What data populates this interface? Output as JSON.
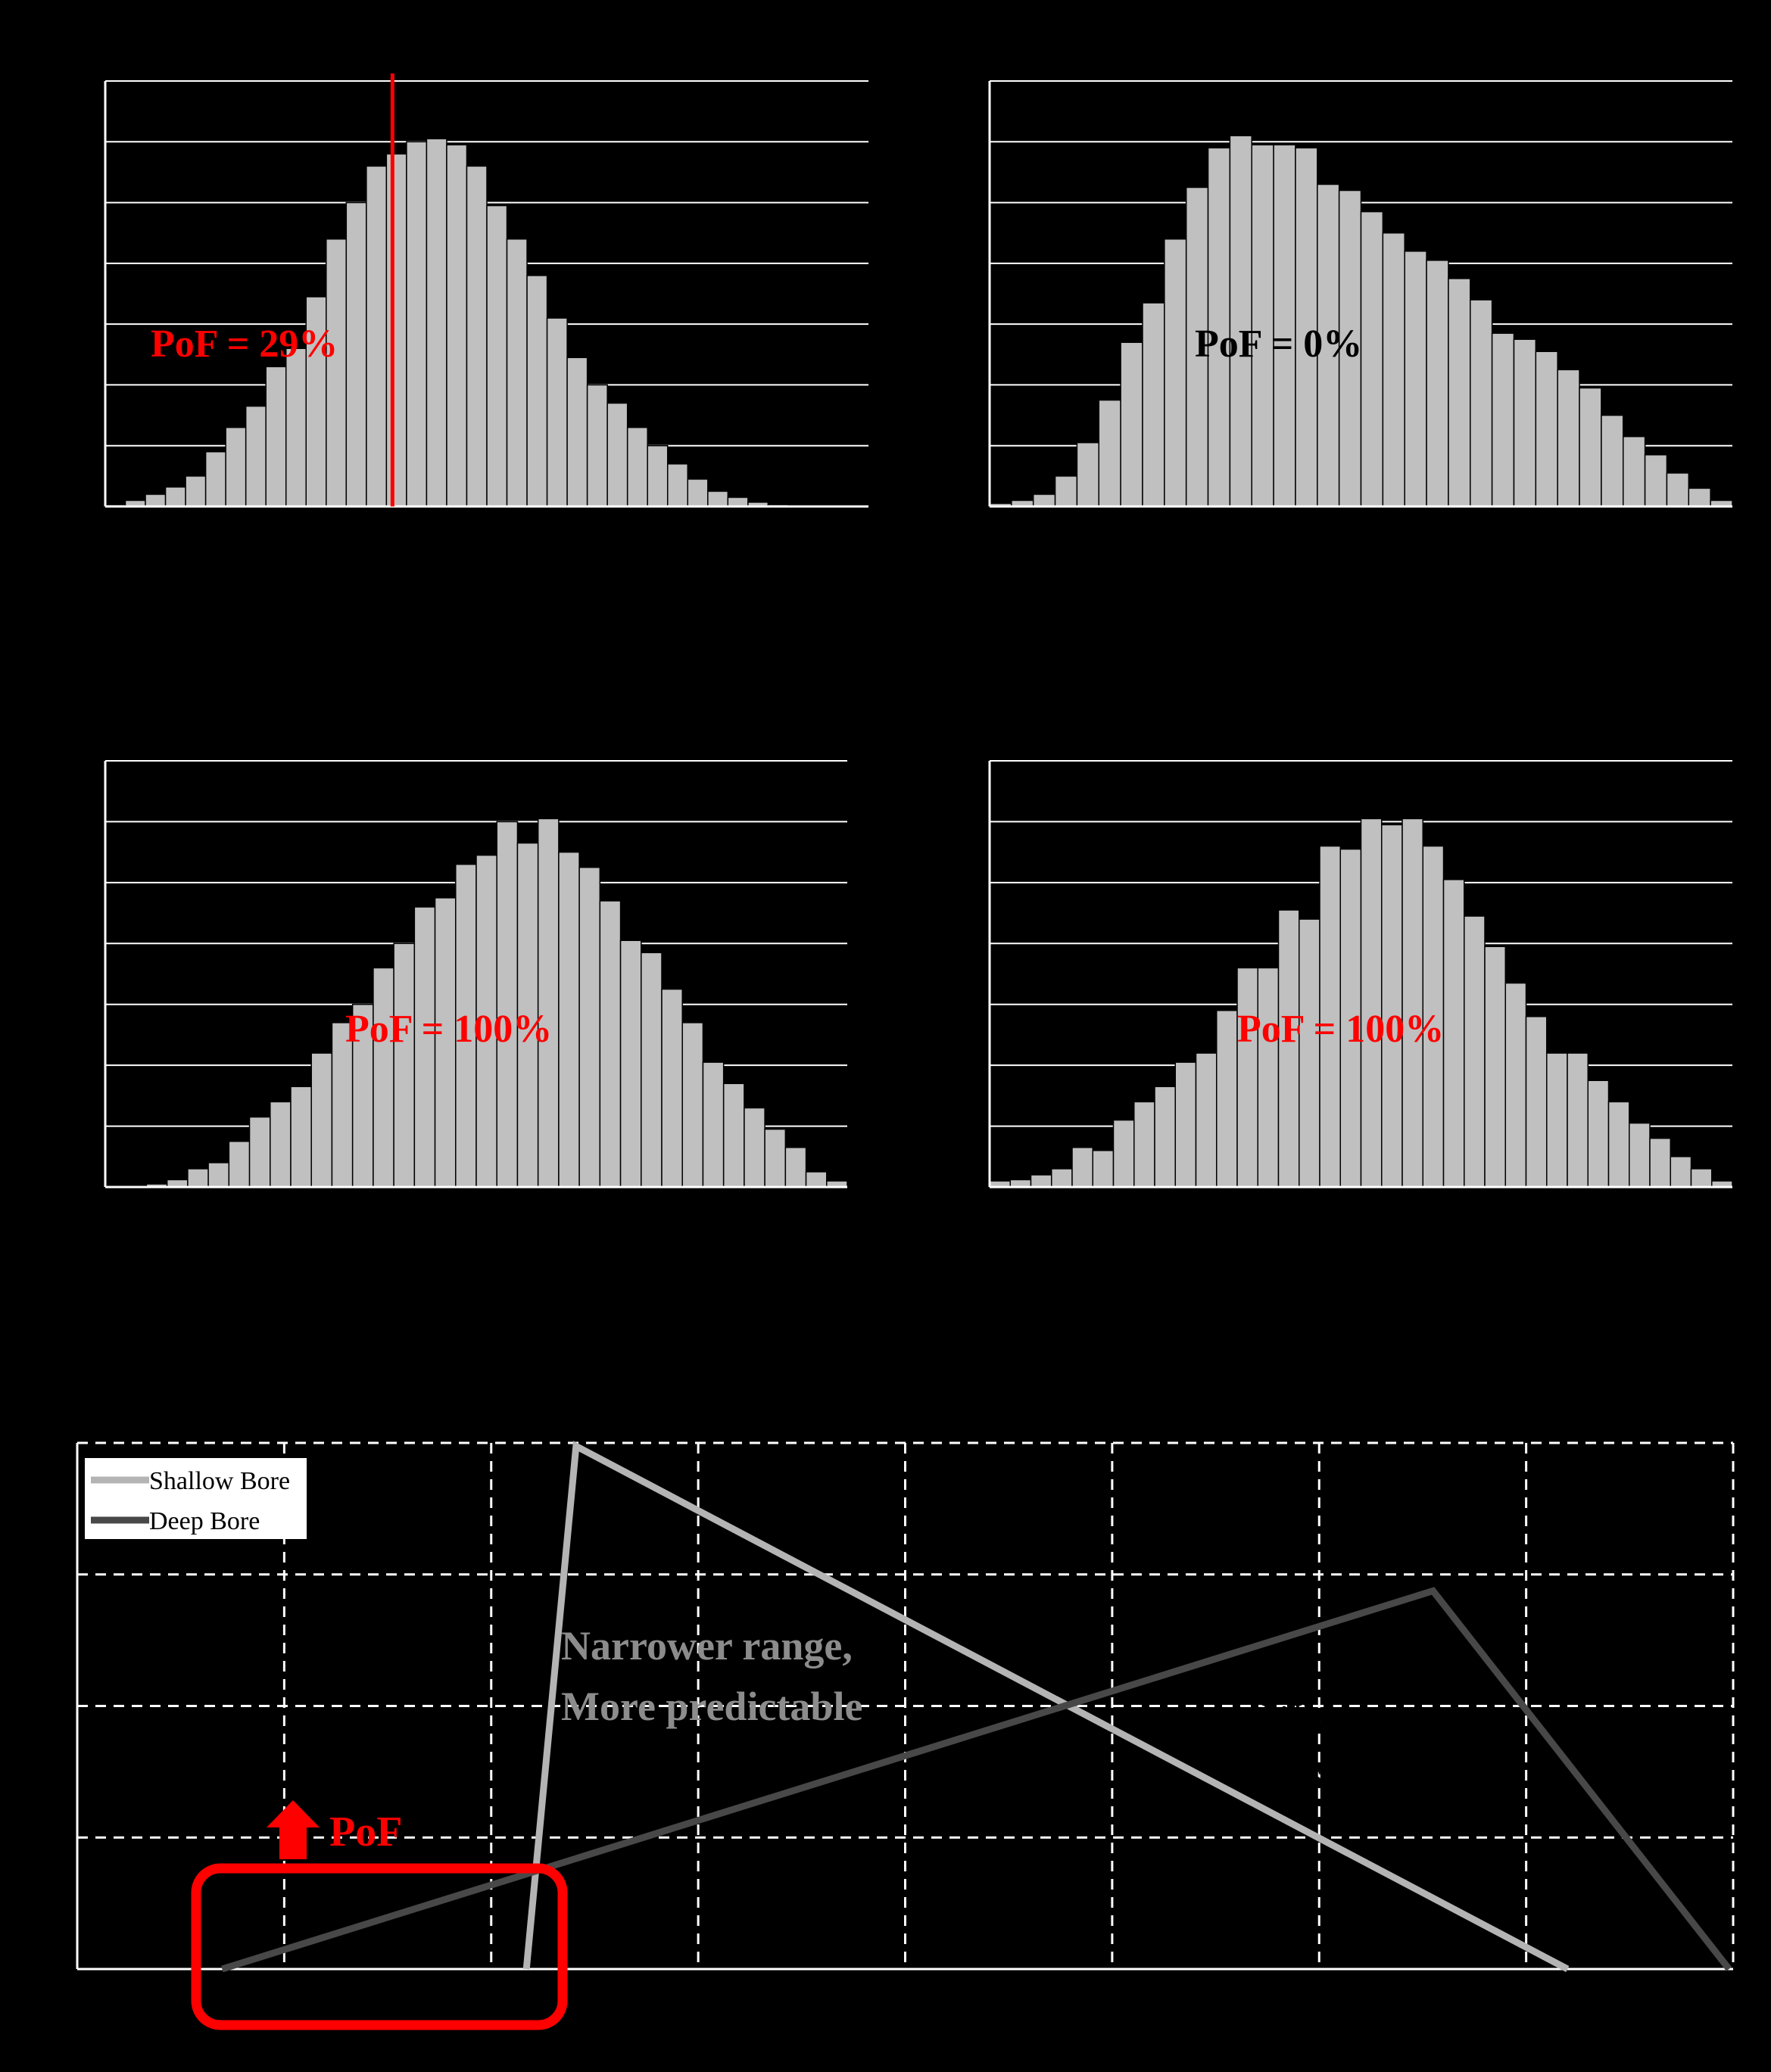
{
  "figure": {
    "background": "#000000",
    "colors": {
      "bar_fill": "#c0c0c0",
      "bar_stroke": "#000000",
      "plot_bg": "#000000",
      "gridline": "#ffffff",
      "axis": "#ffffff",
      "highlight": "#ff0000",
      "annotation_dark": "#000000",
      "annotation_light": "#8c8c8c"
    }
  },
  "chart_data": [
    {
      "type": "bar",
      "panel": "top-left",
      "title": "",
      "xlabel": "",
      "ylabel": "",
      "ylim": [
        0,
        700
      ],
      "grid": true,
      "bin_count": 38,
      "values": [
        3,
        10,
        20,
        32,
        50,
        90,
        130,
        165,
        230,
        260,
        345,
        440,
        500,
        560,
        580,
        600,
        605,
        595,
        560,
        495,
        440,
        380,
        310,
        245,
        200,
        170,
        130,
        100,
        70,
        45,
        25,
        15,
        7,
        3,
        1,
        0,
        0,
        0
      ],
      "threshold_line": {
        "bin_index": 14.3,
        "color": "#ff0000"
      },
      "annotation": {
        "text": "PoF = 29%",
        "color": "#ff0000"
      }
    },
    {
      "type": "bar",
      "panel": "top-right",
      "title": "",
      "xlabel": "",
      "ylabel": "",
      "ylim": [
        0,
        700
      ],
      "grid": true,
      "bin_count": 34,
      "values": [
        5,
        10,
        20,
        50,
        105,
        175,
        270,
        335,
        440,
        525,
        590,
        610,
        595,
        595,
        590,
        530,
        520,
        485,
        450,
        420,
        405,
        375,
        340,
        285,
        275,
        255,
        225,
        195,
        150,
        115,
        85,
        55,
        30,
        10
      ],
      "annotation": {
        "text": "PoF = 0%",
        "color": "#000000"
      }
    },
    {
      "type": "bar",
      "panel": "bottom-left",
      "title": "",
      "xlabel": "",
      "ylabel": "",
      "ylim": [
        0,
        700
      ],
      "grid": true,
      "bin_count": 36,
      "values": [
        0,
        2,
        5,
        12,
        30,
        40,
        75,
        115,
        140,
        165,
        220,
        270,
        300,
        360,
        400,
        460,
        475,
        530,
        545,
        600,
        565,
        605,
        550,
        525,
        470,
        405,
        385,
        325,
        270,
        205,
        170,
        130,
        95,
        65,
        25,
        10
      ],
      "annotation": {
        "text": "PoF = 100%",
        "color": "#ff0000"
      }
    },
    {
      "type": "bar",
      "panel": "bottom-right",
      "title": "",
      "xlabel": "",
      "ylabel": "",
      "ylim": [
        0,
        700
      ],
      "grid": true,
      "bin_count": 36,
      "values": [
        10,
        12,
        20,
        30,
        65,
        60,
        110,
        140,
        165,
        205,
        220,
        290,
        360,
        360,
        455,
        440,
        560,
        555,
        605,
        595,
        605,
        560,
        505,
        445,
        395,
        335,
        280,
        220,
        220,
        175,
        140,
        105,
        80,
        50,
        30,
        10
      ],
      "annotation": {
        "text": "PoF = 100%",
        "color": "#ff0000"
      }
    },
    {
      "type": "line",
      "panel": "bottom",
      "title": "",
      "xlabel": "",
      "ylabel": "",
      "xlim": [
        0,
        8
      ],
      "ylim": [
        0,
        0.08
      ],
      "grid": "dashed",
      "legend_position": "top-left",
      "series": [
        {
          "name": "Shallow Bore",
          "color": "#b4b4b4",
          "x": [
            2.17,
            2.41,
            7.2
          ],
          "y": [
            0,
            0.0795,
            0
          ]
        },
        {
          "name": "Deep Bore",
          "color": "#484848",
          "x": [
            0.7,
            6.55,
            7.98
          ],
          "y": [
            0,
            0.0575,
            0
          ]
        }
      ],
      "annotations": [
        {
          "text_lines": [
            "Narrower range,",
            "More predictable"
          ],
          "color": "#8c8c8c"
        },
        {
          "text_lines": [
            "Wider range,",
            "Less predictable"
          ],
          "color": "#000000"
        },
        {
          "text": "PoF",
          "color": "#ff0000"
        }
      ]
    }
  ]
}
